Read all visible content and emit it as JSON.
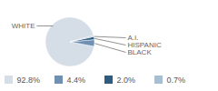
{
  "chart_data": {
    "type": "pie",
    "categories": [
      "WHITE",
      "BLACK",
      "HISPANIC",
      "A.I."
    ],
    "values": [
      92.8,
      4.4,
      2.0,
      0.7
    ],
    "value_labels": [
      "92.8%",
      "4.4%",
      "2.0%",
      "0.7%"
    ],
    "colors": [
      "#d5dde7",
      "#6f90b2",
      "#2e5b80",
      "#a8bed3"
    ]
  }
}
